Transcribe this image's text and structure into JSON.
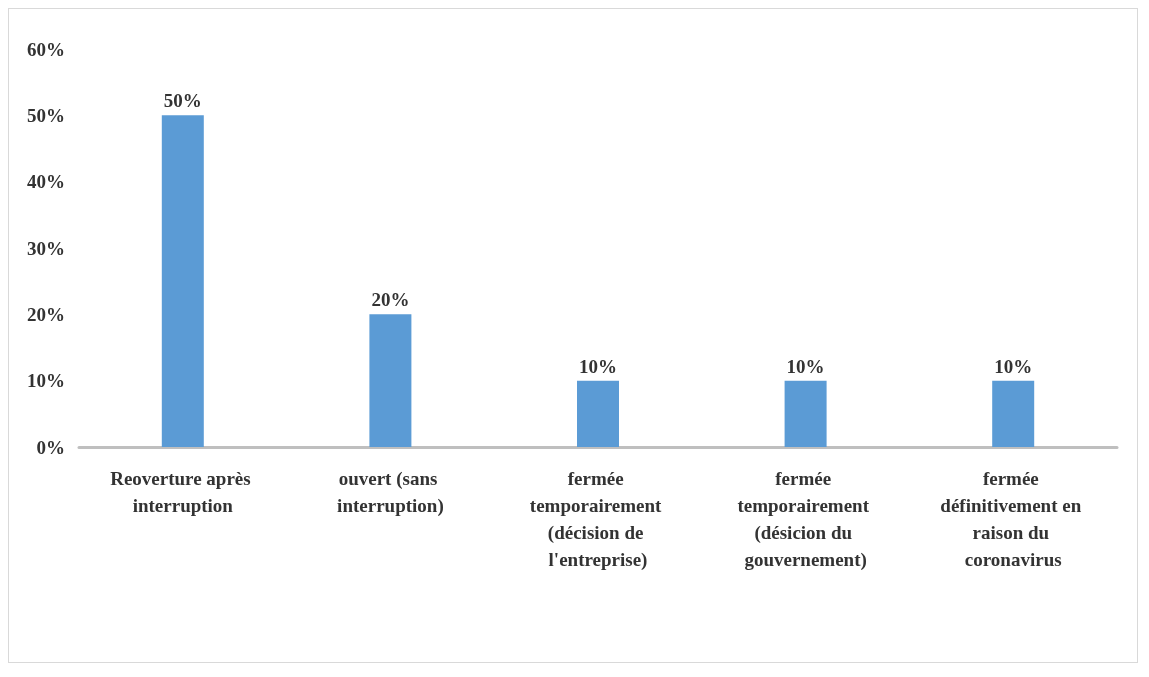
{
  "chart_data": {
    "type": "bar",
    "categories": [
      "Reoverture après interruption",
      "ouvert (sans interruption)",
      "fermée temporairement (décision de l'entreprise)",
      "fermée temporairement (désicion du gouvernement)",
      "fermée définitivement en raison du coronavirus"
    ],
    "values": [
      50,
      20,
      10,
      10,
      10
    ],
    "value_labels": [
      "50%",
      "20%",
      "10%",
      "10%",
      "10%"
    ],
    "color": "#5b9bd5",
    "ylim": [
      0,
      60
    ],
    "yticks": [
      {
        "value": 0,
        "label": "0%"
      },
      {
        "value": 10,
        "label": "10%"
      },
      {
        "value": 20,
        "label": "20%"
      },
      {
        "value": 30,
        "label": "30%"
      },
      {
        "value": 40,
        "label": "40%"
      },
      {
        "value": 50,
        "label": "50%"
      },
      {
        "value": 60,
        "label": "60%"
      }
    ],
    "grid": false
  }
}
